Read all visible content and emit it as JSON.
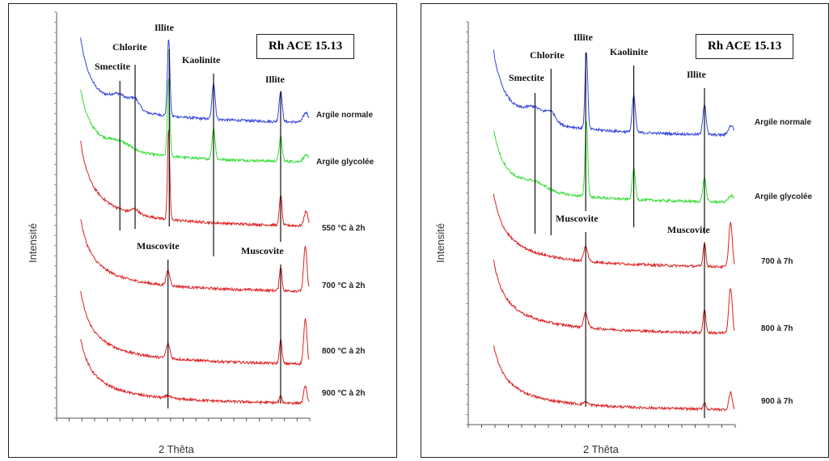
{
  "chart_data": [
    {
      "type": "line",
      "sample_label": "Rh ACE 15.13",
      "xlabel": "2 Thêta",
      "ylabel": "Intensité",
      "x_range": [
        0,
        20
      ],
      "grid": false,
      "series": [
        {
          "name": "Argile normale",
          "color": "#3344dd",
          "shape": "normal"
        },
        {
          "name": "Argile glycolée",
          "color": "#33dd33",
          "shape": "glycol"
        },
        {
          "name": "550 °C à 2h",
          "color": "#dd2222",
          "shape": "h550"
        },
        {
          "name": "700 °C à 2h",
          "color": "#dd2222",
          "shape": "heated"
        },
        {
          "name": "800 °C à 2h",
          "color": "#dd2222",
          "shape": "heated"
        },
        {
          "name": "900 °C à 2h",
          "color": "#dd2222",
          "shape": "h900"
        }
      ],
      "minerals": [
        {
          "name": "Smectite",
          "x": 5.0
        },
        {
          "name": "Chlorite",
          "x": 6.2
        },
        {
          "name": "Illite",
          "x": 8.8
        },
        {
          "name": "Kaolinite",
          "x": 12.4
        },
        {
          "name": "Illite",
          "x": 17.7
        },
        {
          "name": "Muscovite",
          "x": 8.8
        },
        {
          "name": "Muscovite",
          "x": 17.7
        }
      ]
    },
    {
      "type": "line",
      "sample_label": "Rh ACE 15.13",
      "xlabel": "2 Thêta",
      "ylabel": "Intensité",
      "x_range": [
        0,
        20
      ],
      "grid": false,
      "series": [
        {
          "name": "Argile normale",
          "color": "#3344dd",
          "shape": "normal"
        },
        {
          "name": "Argile glycolée",
          "color": "#33dd33",
          "shape": "glycol"
        },
        {
          "name": "700 à 7h",
          "color": "#dd2222",
          "shape": "heated"
        },
        {
          "name": "800 à 7h",
          "color": "#dd2222",
          "shape": "heated"
        },
        {
          "name": "900 à 7h",
          "color": "#dd2222",
          "shape": "h900"
        }
      ],
      "minerals": [
        {
          "name": "Smectite",
          "x": 5.0
        },
        {
          "name": "Chlorite",
          "x": 6.2
        },
        {
          "name": "Illite",
          "x": 8.8
        },
        {
          "name": "Kaolinite",
          "x": 12.4
        },
        {
          "name": "Illite",
          "x": 17.7
        },
        {
          "name": "Muscovite",
          "x": 8.8
        },
        {
          "name": "Muscovite",
          "x": 17.7
        }
      ]
    }
  ]
}
